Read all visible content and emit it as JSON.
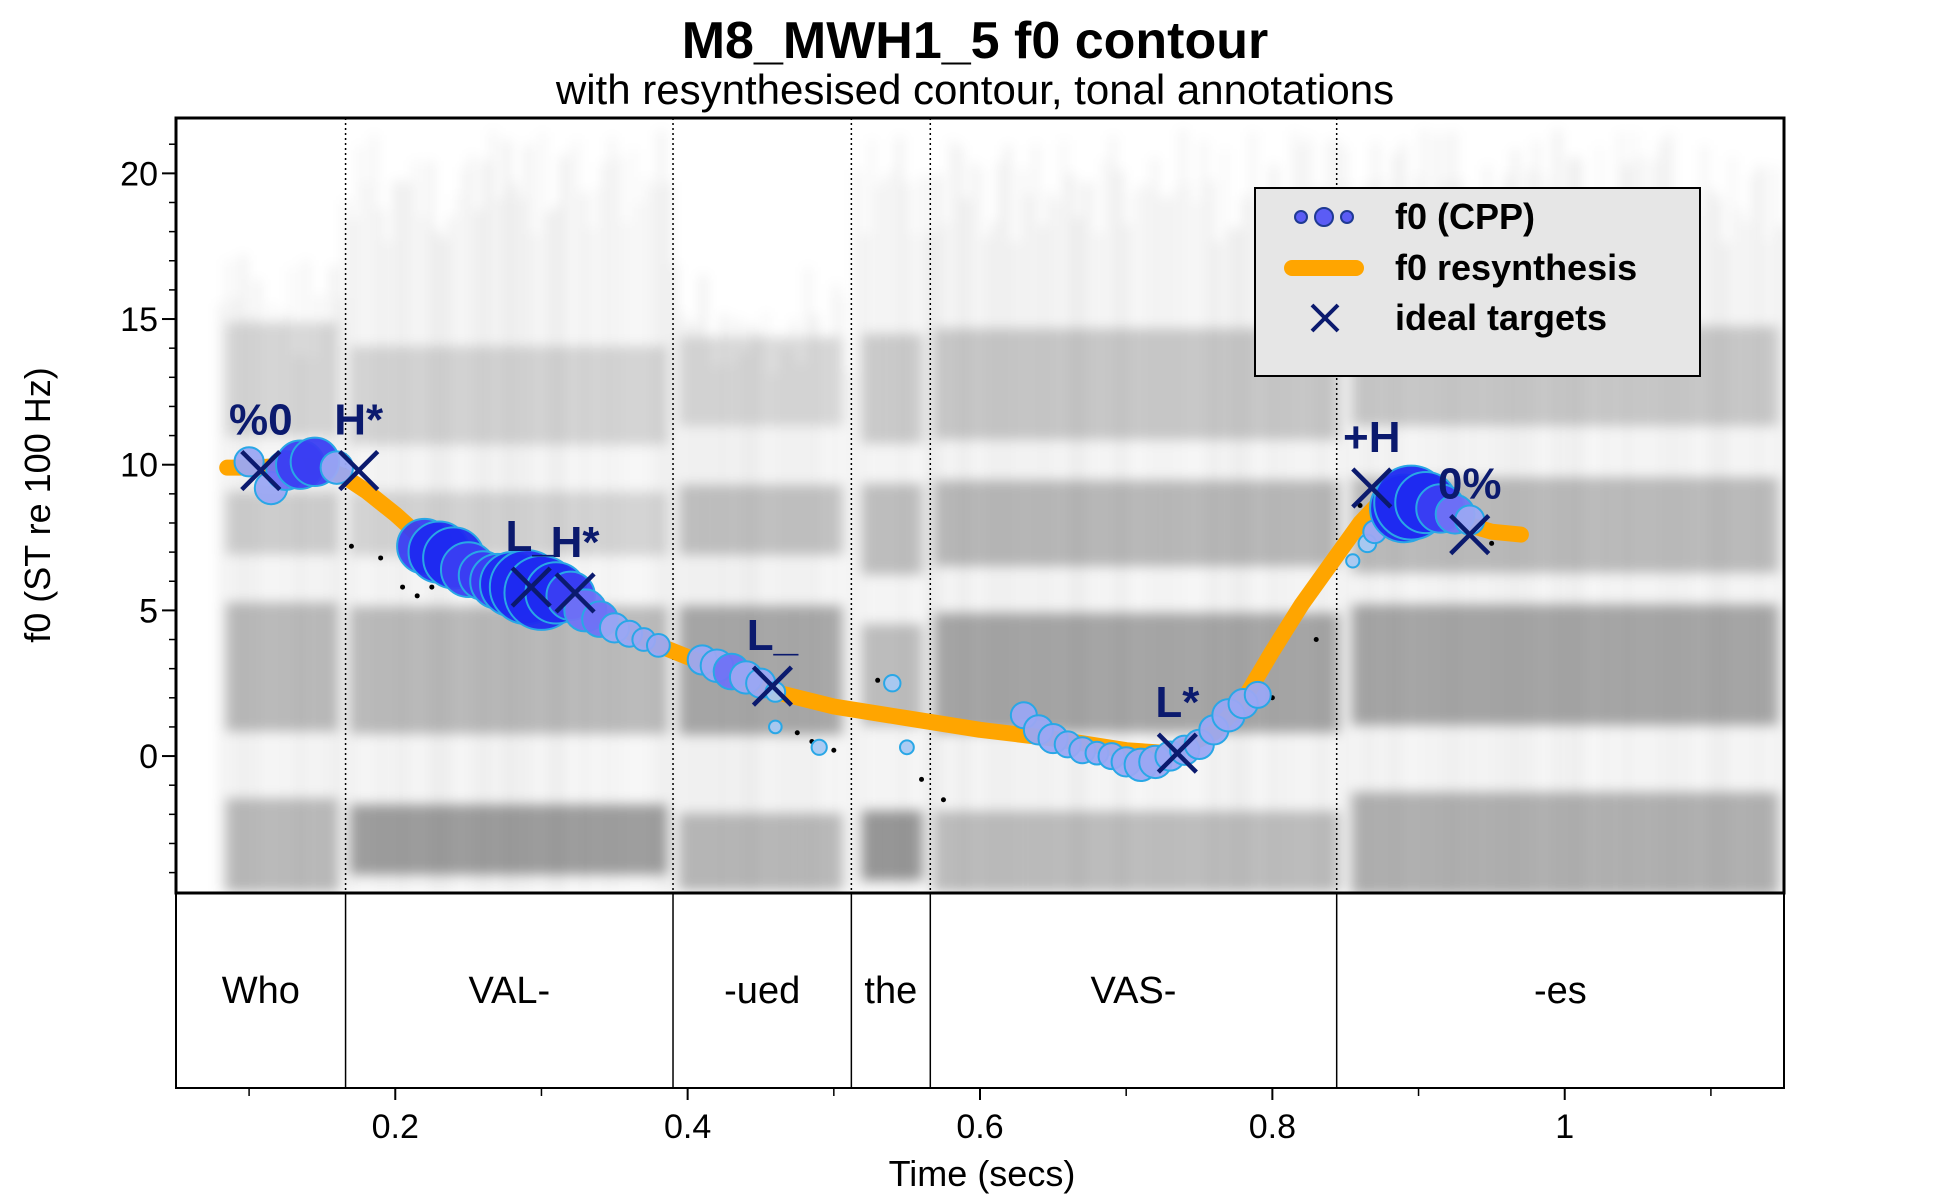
{
  "chart_data": {
    "type": "scatter",
    "title": "M8_MWH1_5 f0 contour",
    "subtitle": "with resynthesised contour, tonal annotations",
    "xlabel": "Time (secs)",
    "ylabel": "f0 (ST re 100 Hz)",
    "xlim": [
      0.05,
      1.15
    ],
    "ylim": [
      -4.7,
      21.9
    ],
    "x_ticks": [
      0.2,
      0.4,
      0.6,
      0.8,
      1
    ],
    "x_tick_labels": [
      "0.2",
      "0.4",
      "0.6",
      "0.8",
      "1"
    ],
    "y_ticks": [
      0,
      5,
      10,
      15,
      20
    ],
    "y_tick_labels": [
      "0",
      "5",
      "10",
      "15",
      "20"
    ],
    "legend": {
      "placement": "top-right",
      "entries": [
        {
          "label": "f0 (CPP)",
          "color": "#5b5cf5"
        },
        {
          "label": "f0 resynthesis",
          "color": "#ffa500"
        },
        {
          "label": "ideal targets",
          "color": "#0b1a6e"
        }
      ]
    },
    "word_boundaries": [
      0.166,
      0.39,
      0.512,
      0.566,
      0.844
    ],
    "words": [
      {
        "label": "Who",
        "start": 0.05,
        "end": 0.166
      },
      {
        "label": "VAL-",
        "start": 0.166,
        "end": 0.39
      },
      {
        "label": "-ued",
        "start": 0.39,
        "end": 0.512
      },
      {
        "label": "the",
        "start": 0.512,
        "end": 0.566
      },
      {
        "label": "VAS-",
        "start": 0.566,
        "end": 0.844
      },
      {
        "label": "-es",
        "start": 0.844,
        "end": 1.15
      }
    ],
    "series": [
      {
        "name": "f0 (CPP)",
        "points": [
          {
            "x": 0.1,
            "y": 10.1,
            "s": 0.3
          },
          {
            "x": 0.115,
            "y": 9.2,
            "s": 0.35
          },
          {
            "x": 0.125,
            "y": 9.8,
            "s": 0.45
          },
          {
            "x": 0.135,
            "y": 10.0,
            "s": 0.6
          },
          {
            "x": 0.145,
            "y": 10.1,
            "s": 0.6
          },
          {
            "x": 0.16,
            "y": 9.9,
            "s": 0.35
          },
          {
            "x": 0.22,
            "y": 7.2,
            "s": 0.7
          },
          {
            "x": 0.23,
            "y": 7.0,
            "s": 0.8
          },
          {
            "x": 0.24,
            "y": 6.8,
            "s": 0.8
          },
          {
            "x": 0.25,
            "y": 6.4,
            "s": 0.7
          },
          {
            "x": 0.26,
            "y": 6.2,
            "s": 0.6
          },
          {
            "x": 0.27,
            "y": 6.0,
            "s": 0.7
          },
          {
            "x": 0.28,
            "y": 5.9,
            "s": 0.85
          },
          {
            "x": 0.29,
            "y": 5.8,
            "s": 1.0
          },
          {
            "x": 0.3,
            "y": 5.6,
            "s": 1.0
          },
          {
            "x": 0.31,
            "y": 5.6,
            "s": 0.8
          },
          {
            "x": 0.32,
            "y": 5.5,
            "s": 0.6
          },
          {
            "x": 0.33,
            "y": 5.0,
            "s": 0.5
          },
          {
            "x": 0.34,
            "y": 4.7,
            "s": 0.4
          },
          {
            "x": 0.35,
            "y": 4.4,
            "s": 0.3
          },
          {
            "x": 0.36,
            "y": 4.2,
            "s": 0.25
          },
          {
            "x": 0.37,
            "y": 4.0,
            "s": 0.2
          },
          {
            "x": 0.38,
            "y": 3.8,
            "s": 0.2
          },
          {
            "x": 0.41,
            "y": 3.3,
            "s": 0.3
          },
          {
            "x": 0.42,
            "y": 3.1,
            "s": 0.35
          },
          {
            "x": 0.43,
            "y": 2.9,
            "s": 0.4
          },
          {
            "x": 0.44,
            "y": 2.7,
            "s": 0.35
          },
          {
            "x": 0.45,
            "y": 2.5,
            "s": 0.3
          },
          {
            "x": 0.46,
            "y": 2.2,
            "s": 0.15
          },
          {
            "x": 0.46,
            "y": 1.0,
            "s": 0.04
          },
          {
            "x": 0.49,
            "y": 0.3,
            "s": 0.08
          },
          {
            "x": 0.54,
            "y": 2.5,
            "s": 0.1
          },
          {
            "x": 0.55,
            "y": 0.3,
            "s": 0.06
          },
          {
            "x": 0.63,
            "y": 1.4,
            "s": 0.25
          },
          {
            "x": 0.64,
            "y": 0.9,
            "s": 0.3
          },
          {
            "x": 0.65,
            "y": 0.6,
            "s": 0.3
          },
          {
            "x": 0.66,
            "y": 0.4,
            "s": 0.25
          },
          {
            "x": 0.67,
            "y": 0.2,
            "s": 0.25
          },
          {
            "x": 0.68,
            "y": 0.1,
            "s": 0.2
          },
          {
            "x": 0.69,
            "y": 0.0,
            "s": 0.25
          },
          {
            "x": 0.7,
            "y": -0.2,
            "s": 0.3
          },
          {
            "x": 0.71,
            "y": -0.3,
            "s": 0.35
          },
          {
            "x": 0.72,
            "y": -0.2,
            "s": 0.35
          },
          {
            "x": 0.73,
            "y": 0.0,
            "s": 0.3
          },
          {
            "x": 0.74,
            "y": 0.2,
            "s": 0.3
          },
          {
            "x": 0.75,
            "y": 0.4,
            "s": 0.3
          },
          {
            "x": 0.76,
            "y": 0.9,
            "s": 0.3
          },
          {
            "x": 0.77,
            "y": 1.4,
            "s": 0.35
          },
          {
            "x": 0.78,
            "y": 1.8,
            "s": 0.3
          },
          {
            "x": 0.79,
            "y": 2.1,
            "s": 0.25
          },
          {
            "x": 0.855,
            "y": 6.7,
            "s": 0.05
          },
          {
            "x": 0.865,
            "y": 7.3,
            "s": 0.12
          },
          {
            "x": 0.87,
            "y": 7.7,
            "s": 0.2
          },
          {
            "x": 0.88,
            "y": 8.3,
            "s": 0.4
          },
          {
            "x": 0.89,
            "y": 8.5,
            "s": 0.9
          },
          {
            "x": 0.895,
            "y": 8.7,
            "s": 1.0
          },
          {
            "x": 0.905,
            "y": 8.7,
            "s": 0.8
          },
          {
            "x": 0.915,
            "y": 8.5,
            "s": 0.6
          },
          {
            "x": 0.925,
            "y": 8.3,
            "s": 0.45
          },
          {
            "x": 0.935,
            "y": 8.1,
            "s": 0.3
          }
        ]
      },
      {
        "name": "f0 resynthesis",
        "points": [
          [
            0.085,
            9.9
          ],
          [
            0.105,
            9.9
          ],
          [
            0.13,
            10.0
          ],
          [
            0.15,
            9.9
          ],
          [
            0.165,
            9.6
          ],
          [
            0.18,
            9.1
          ],
          [
            0.2,
            8.3
          ],
          [
            0.22,
            7.4
          ],
          [
            0.25,
            6.6
          ],
          [
            0.28,
            6.0
          ],
          [
            0.3,
            5.6
          ],
          [
            0.32,
            5.2
          ],
          [
            0.35,
            4.5
          ],
          [
            0.38,
            3.8
          ],
          [
            0.41,
            3.2
          ],
          [
            0.44,
            2.6
          ],
          [
            0.46,
            2.2
          ],
          [
            0.5,
            1.7
          ],
          [
            0.55,
            1.3
          ],
          [
            0.6,
            0.9
          ],
          [
            0.65,
            0.6
          ],
          [
            0.7,
            0.2
          ],
          [
            0.73,
            0.1
          ],
          [
            0.76,
            0.8
          ],
          [
            0.78,
            1.9
          ],
          [
            0.8,
            3.6
          ],
          [
            0.82,
            5.2
          ],
          [
            0.84,
            6.6
          ],
          [
            0.86,
            8.0
          ],
          [
            0.875,
            8.8
          ],
          [
            0.89,
            8.9
          ],
          [
            0.91,
            8.5
          ],
          [
            0.93,
            8.0
          ],
          [
            0.95,
            7.7
          ],
          [
            0.97,
            7.6
          ]
        ]
      },
      {
        "name": "ideal targets",
        "points": [
          {
            "label": "%0",
            "x": 0.108,
            "y": 9.8
          },
          {
            "label": "H*",
            "x": 0.175,
            "y": 9.8
          },
          {
            "label": "L_",
            "x": 0.293,
            "y": 5.8
          },
          {
            "label": "H*",
            "x": 0.323,
            "y": 5.6
          },
          {
            "label": "L_",
            "x": 0.458,
            "y": 2.4
          },
          {
            "label": "L*",
            "x": 0.735,
            "y": 0.1
          },
          {
            "label": "+H",
            "x": 0.868,
            "y": 9.2
          },
          {
            "label": "0%",
            "x": 0.935,
            "y": 7.6
          }
        ]
      }
    ],
    "unvoiced_points": [
      [
        0.17,
        7.2
      ],
      [
        0.19,
        6.8
      ],
      [
        0.205,
        5.8
      ],
      [
        0.215,
        5.5
      ],
      [
        0.225,
        5.8
      ],
      [
        0.475,
        0.8
      ],
      [
        0.485,
        0.5
      ],
      [
        0.5,
        0.2
      ],
      [
        0.53,
        2.6
      ],
      [
        0.56,
        -0.8
      ],
      [
        0.575,
        -1.5
      ],
      [
        0.8,
        2.0
      ],
      [
        0.83,
        4.0
      ],
      [
        0.86,
        8.6
      ],
      [
        0.95,
        7.3
      ]
    ],
    "spectrogram_bands": [
      {
        "from": 0.08,
        "to": 0.165,
        "max": 17.5
      },
      {
        "from": 0.165,
        "to": 0.39,
        "max": 21.5
      },
      {
        "from": 0.39,
        "to": 0.51,
        "max": 17.0
      },
      {
        "from": 0.515,
        "to": 0.565,
        "max": 21.5
      },
      {
        "from": 0.565,
        "to": 0.85,
        "max": 21.5
      },
      {
        "from": 0.85,
        "to": 1.15,
        "max": 21.5
      }
    ]
  }
}
